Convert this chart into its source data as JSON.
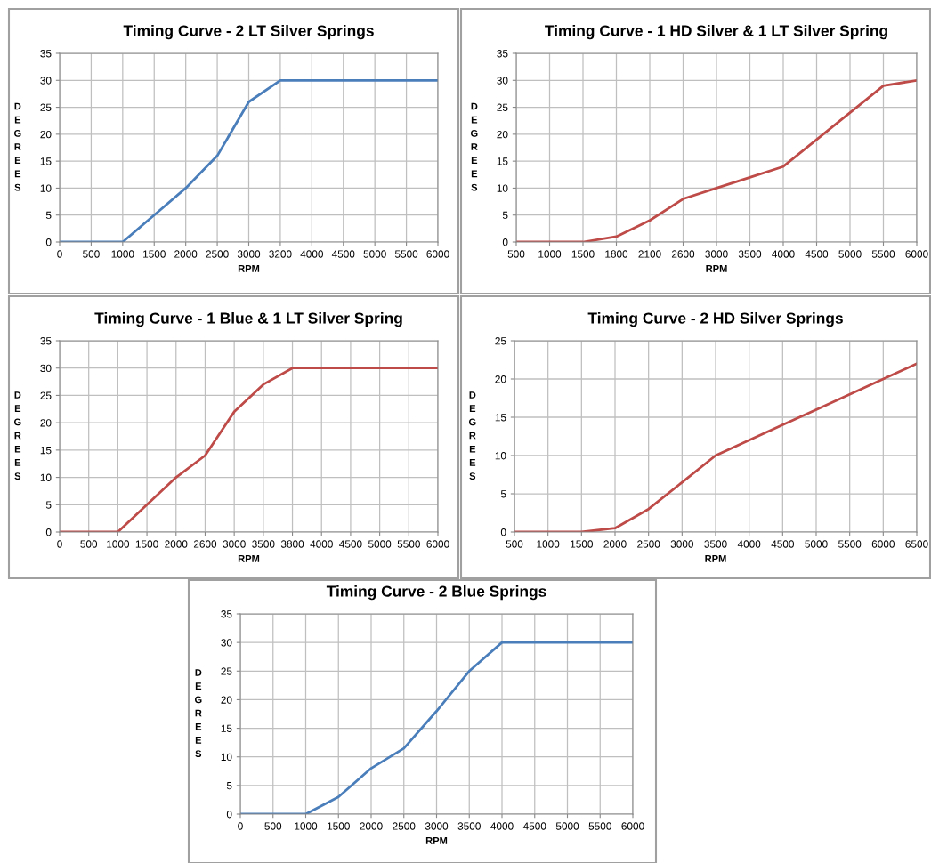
{
  "chart_data": [
    {
      "type": "line",
      "title": "Timing Curve - 2 LT Silver Springs",
      "xlabel": "RPM",
      "ylabel": "DEGREES",
      "categories": [
        "0",
        "500",
        "1000",
        "1500",
        "2000",
        "2500",
        "3000",
        "3200",
        "4000",
        "4500",
        "5000",
        "5500",
        "6000"
      ],
      "series": [
        {
          "color": "#4a7ebb",
          "values": [
            0,
            0,
            0,
            5,
            10,
            16,
            26,
            30,
            30,
            30,
            30,
            30,
            30
          ]
        }
      ],
      "ylim": [
        0,
        35
      ],
      "yticks": [
        0,
        5,
        10,
        15,
        20,
        25,
        30,
        35
      ],
      "grid": true
    },
    {
      "type": "line",
      "title": "Timing Curve - 1 HD Silver & 1 LT Silver Spring",
      "xlabel": "RPM",
      "ylabel": "DEGREES",
      "categories": [
        "500",
        "1000",
        "1500",
        "1800",
        "2100",
        "2600",
        "3000",
        "3500",
        "4000",
        "4500",
        "5000",
        "5500",
        "6000"
      ],
      "series": [
        {
          "color": "#be4b48",
          "values": [
            0,
            0,
            0,
            1,
            4,
            8,
            10,
            12,
            14,
            19,
            24,
            29,
            30
          ]
        }
      ],
      "ylim": [
        0,
        35
      ],
      "yticks": [
        0,
        5,
        10,
        15,
        20,
        25,
        30,
        35
      ],
      "grid": true
    },
    {
      "type": "line",
      "title": "Timing Curve - 1 Blue & 1 LT Silver Spring",
      "xlabel": "RPM",
      "ylabel": "DEGREES",
      "categories": [
        "0",
        "500",
        "1000",
        "1500",
        "2000",
        "2600",
        "3000",
        "3500",
        "3800",
        "4000",
        "4500",
        "5000",
        "5500",
        "6000"
      ],
      "series": [
        {
          "color": "#be4b48",
          "values": [
            0,
            0,
            0,
            5,
            10,
            14,
            22,
            27,
            30,
            30,
            30,
            30,
            30,
            30
          ]
        }
      ],
      "ylim": [
        0,
        35
      ],
      "yticks": [
        0,
        5,
        10,
        15,
        20,
        25,
        30,
        35
      ],
      "grid": true
    },
    {
      "type": "line",
      "title": "Timing Curve - 2 HD Silver Springs",
      "xlabel": "RPM",
      "ylabel": "DEGREES",
      "categories": [
        "500",
        "1000",
        "1500",
        "2000",
        "2500",
        "3000",
        "3500",
        "4000",
        "4500",
        "5000",
        "5500",
        "6000",
        "6500"
      ],
      "series": [
        {
          "color": "#be4b48",
          "values": [
            0,
            0,
            0,
            0.5,
            3,
            6.5,
            10,
            12,
            14,
            16,
            18,
            20,
            22
          ]
        }
      ],
      "ylim": [
        0,
        25
      ],
      "yticks": [
        0,
        5,
        10,
        15,
        20,
        25
      ],
      "grid": true
    },
    {
      "type": "line",
      "title": "Timing Curve - 2 Blue Springs",
      "xlabel": "RPM",
      "ylabel": "DEGREES",
      "categories": [
        "0",
        "500",
        "1000",
        "1500",
        "2000",
        "2500",
        "3000",
        "3500",
        "4000",
        "4500",
        "5000",
        "5500",
        "6000"
      ],
      "series": [
        {
          "color": "#4a7ebb",
          "values": [
            0,
            0,
            0,
            3,
            8,
            11.5,
            18,
            25,
            30,
            30,
            30,
            30,
            30
          ]
        }
      ],
      "ylim": [
        0,
        35
      ],
      "yticks": [
        0,
        5,
        10,
        15,
        20,
        25,
        30,
        35
      ],
      "grid": true
    }
  ]
}
